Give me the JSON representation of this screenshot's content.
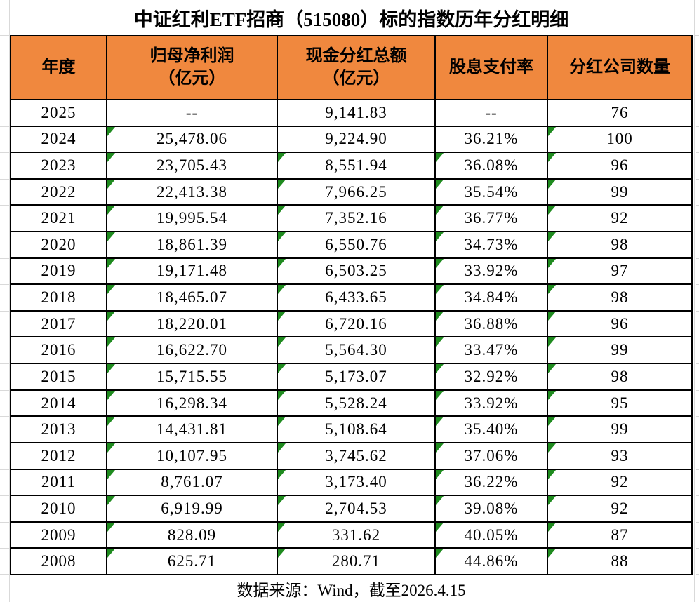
{
  "chart_data": {
    "type": "table",
    "title": "中证红利ETF招商（515080）标的指数历年分红明细",
    "columns": [
      {
        "label": "年度",
        "sub": ""
      },
      {
        "label": "归母净利润",
        "sub": "（亿元）"
      },
      {
        "label": "现金分红总额",
        "sub": "（亿元）"
      },
      {
        "label": "股息支付率",
        "sub": ""
      },
      {
        "label": "分红公司数量",
        "sub": ""
      }
    ],
    "rows": [
      {
        "cells": [
          "2025",
          "--",
          "9,141.83",
          "--",
          "76"
        ],
        "green_triangles": [
          false,
          false,
          false,
          false
        ]
      },
      {
        "cells": [
          "2024",
          "25,478.06",
          "9,224.90",
          "36.21%",
          "100"
        ],
        "green_triangles": [
          true,
          false,
          false,
          true
        ]
      },
      {
        "cells": [
          "2023",
          "23,705.43",
          "8,551.94",
          "36.08%",
          "96"
        ],
        "green_triangles": [
          true,
          true,
          true,
          true
        ]
      },
      {
        "cells": [
          "2022",
          "22,413.38",
          "7,966.25",
          "35.54%",
          "99"
        ],
        "green_triangles": [
          true,
          true,
          true,
          true
        ]
      },
      {
        "cells": [
          "2021",
          "19,995.54",
          "7,352.16",
          "36.77%",
          "92"
        ],
        "green_triangles": [
          true,
          true,
          true,
          true
        ]
      },
      {
        "cells": [
          "2020",
          "18,861.39",
          "6,550.76",
          "34.73%",
          "98"
        ],
        "green_triangles": [
          true,
          true,
          true,
          true
        ]
      },
      {
        "cells": [
          "2019",
          "19,171.48",
          "6,503.25",
          "33.92%",
          "97"
        ],
        "green_triangles": [
          true,
          true,
          true,
          true
        ]
      },
      {
        "cells": [
          "2018",
          "18,465.07",
          "6,433.65",
          "34.84%",
          "98"
        ],
        "green_triangles": [
          true,
          true,
          true,
          true
        ]
      },
      {
        "cells": [
          "2017",
          "18,220.01",
          "6,720.16",
          "36.88%",
          "96"
        ],
        "green_triangles": [
          true,
          true,
          true,
          true
        ]
      },
      {
        "cells": [
          "2016",
          "16,622.70",
          "5,564.30",
          "33.47%",
          "99"
        ],
        "green_triangles": [
          true,
          true,
          true,
          true
        ]
      },
      {
        "cells": [
          "2015",
          "15,715.55",
          "5,173.07",
          "32.92%",
          "98"
        ],
        "green_triangles": [
          true,
          true,
          true,
          true
        ]
      },
      {
        "cells": [
          "2014",
          "16,298.34",
          "5,528.24",
          "33.92%",
          "95"
        ],
        "green_triangles": [
          true,
          true,
          true,
          true
        ]
      },
      {
        "cells": [
          "2013",
          "14,431.81",
          "5,108.64",
          "35.40%",
          "99"
        ],
        "green_triangles": [
          true,
          true,
          true,
          true
        ]
      },
      {
        "cells": [
          "2012",
          "10,107.95",
          "3,745.62",
          "37.06%",
          "93"
        ],
        "green_triangles": [
          true,
          true,
          true,
          true
        ]
      },
      {
        "cells": [
          "2011",
          "8,761.07",
          "3,173.40",
          "36.22%",
          "92"
        ],
        "green_triangles": [
          true,
          true,
          true,
          true
        ]
      },
      {
        "cells": [
          "2010",
          "6,919.99",
          "2,704.53",
          "39.08%",
          "92"
        ],
        "green_triangles": [
          true,
          true,
          true,
          true
        ]
      },
      {
        "cells": [
          "2009",
          "828.09",
          "331.62",
          "40.05%",
          "87"
        ],
        "green_triangles": [
          true,
          true,
          true,
          true
        ]
      },
      {
        "cells": [
          "2008",
          "625.71",
          "280.71",
          "44.86%",
          "88"
        ],
        "green_triangles": [
          true,
          true,
          true,
          true
        ]
      }
    ],
    "footnote": "数据来源：Wind，截至2026.4.15"
  },
  "colors": {
    "header_bg": "#F0883E",
    "triangle_green": "#1F8B1F",
    "table_border": "#000000",
    "gridline": "#D9D9D9"
  }
}
